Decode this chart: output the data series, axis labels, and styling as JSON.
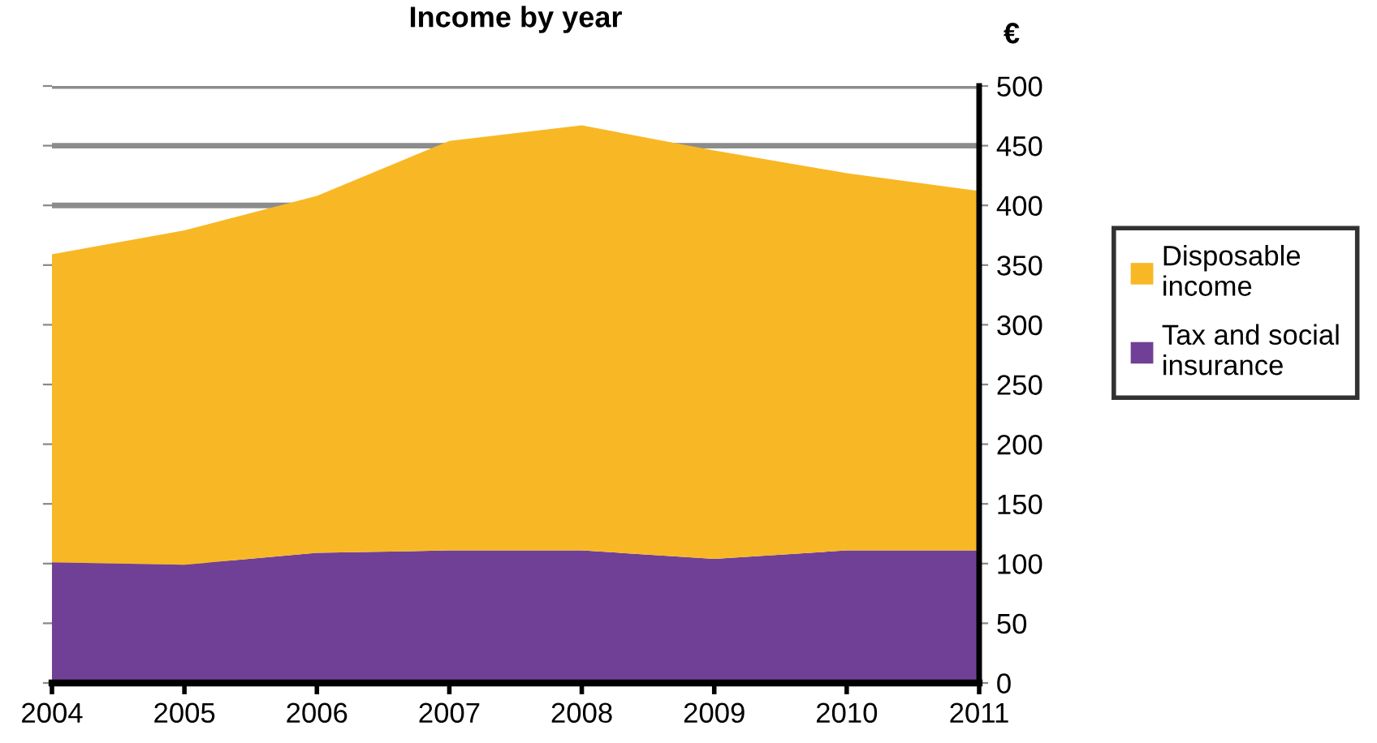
{
  "chart_data": {
    "type": "area",
    "stacked": true,
    "title": "Income by year",
    "ylabel": "€",
    "x": [
      2004,
      2005,
      2006,
      2007,
      2008,
      2009,
      2010,
      2011
    ],
    "series": [
      {
        "name": "Tax and social insurance",
        "color": "#704097",
        "values": [
          101,
          99,
          109,
          111,
          111,
          104,
          111,
          111
        ]
      },
      {
        "name": "Disposable income",
        "color": "#f8b825",
        "values": [
          258,
          280,
          299,
          343,
          356,
          342,
          316,
          301
        ]
      }
    ],
    "xlim": [
      2004,
      2011
    ],
    "xticks": [
      2004,
      2005,
      2006,
      2007,
      2008,
      2009,
      2010,
      2011
    ],
    "ylim": [
      0,
      500
    ],
    "yticks": [
      0,
      50,
      100,
      150,
      200,
      250,
      300,
      350,
      400,
      450,
      500
    ],
    "grid": "y",
    "legend": "right"
  }
}
